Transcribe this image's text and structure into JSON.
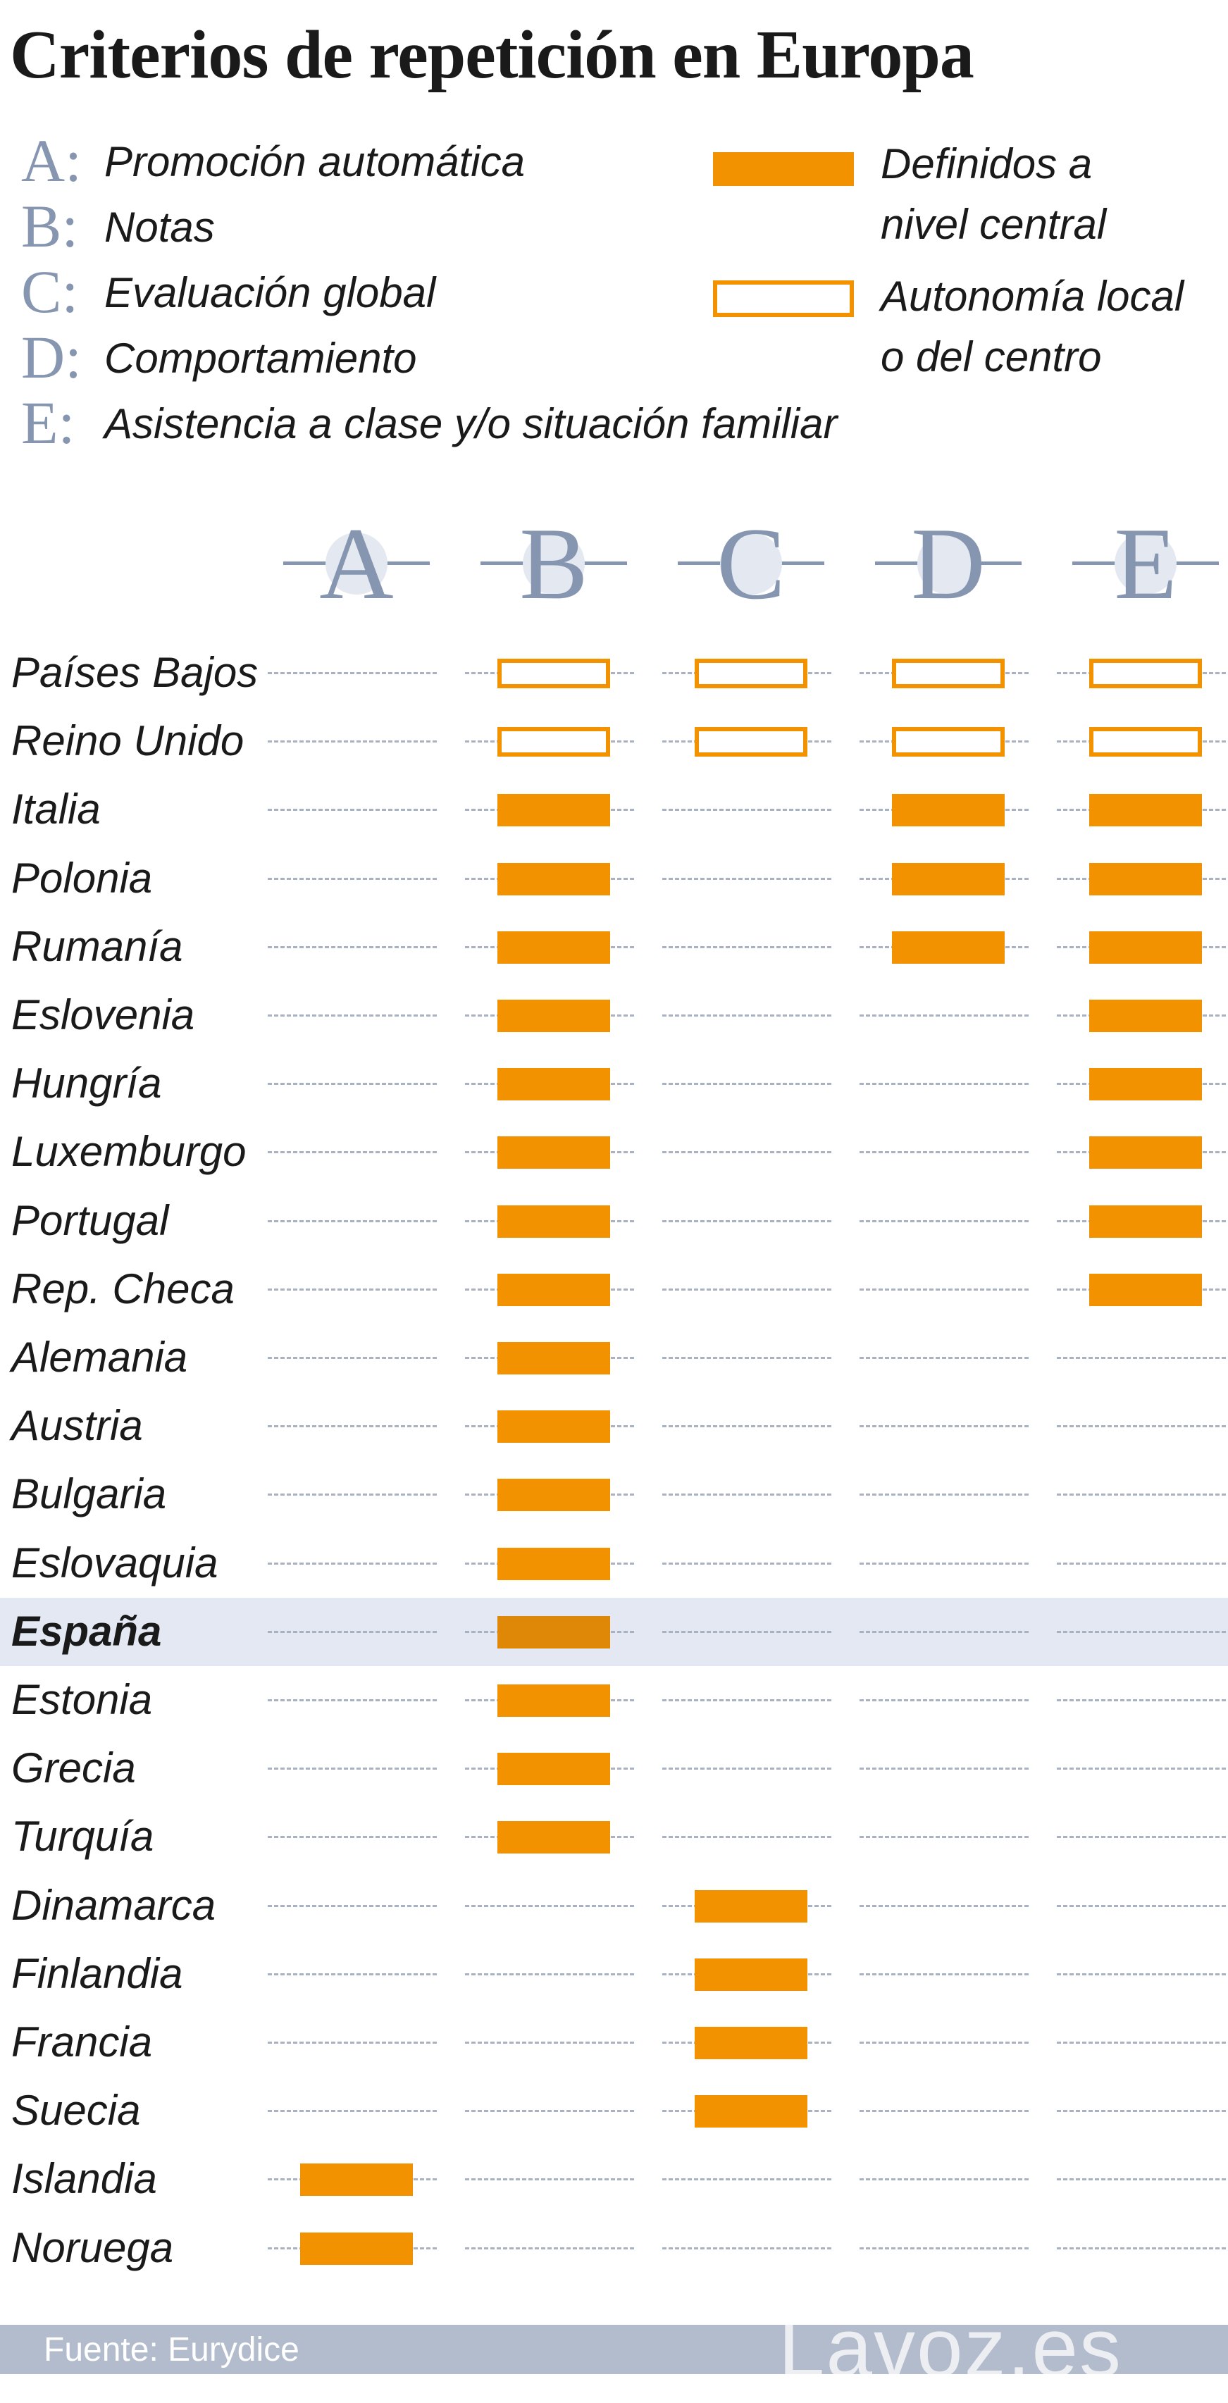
{
  "title": "Criterios de repetición en Europa",
  "definitions": [
    {
      "letter": "A:",
      "text": "Promoción automática"
    },
    {
      "letter": "B:",
      "text": "Notas"
    },
    {
      "letter": "C:",
      "text": "Evaluación global"
    },
    {
      "letter": "D:",
      "text": "Comportamiento"
    },
    {
      "letter": "E:",
      "text": "Asistencia a clase y/o situación familiar"
    }
  ],
  "legend": {
    "central": {
      "line1": "Definidos a",
      "line2": "nivel central"
    },
    "local": {
      "line1": "Autonomía local",
      "line2": "o del centro"
    }
  },
  "colors": {
    "bar": "#f39200",
    "highlight_row": "#e3e8f2",
    "letters": "#8796b0"
  },
  "chart_data": {
    "type": "table",
    "columns": [
      "A",
      "B",
      "C",
      "D",
      "E"
    ],
    "rows": [
      {
        "country": "Países Bajos",
        "values": [
          null,
          "local",
          "local",
          "local",
          "local"
        ]
      },
      {
        "country": "Reino Unido",
        "values": [
          null,
          "local",
          "local",
          "local",
          "local"
        ]
      },
      {
        "country": "Italia",
        "values": [
          null,
          "central",
          null,
          "central",
          "central"
        ]
      },
      {
        "country": "Polonia",
        "values": [
          null,
          "central",
          null,
          "central",
          "central"
        ]
      },
      {
        "country": "Rumanía",
        "values": [
          null,
          "central",
          null,
          "central",
          "central"
        ]
      },
      {
        "country": "Eslovenia",
        "values": [
          null,
          "central",
          null,
          null,
          "central"
        ]
      },
      {
        "country": "Hungría",
        "values": [
          null,
          "central",
          null,
          null,
          "central"
        ]
      },
      {
        "country": "Luxemburgo",
        "values": [
          null,
          "central",
          null,
          null,
          "central"
        ]
      },
      {
        "country": "Portugal",
        "values": [
          null,
          "central",
          null,
          null,
          "central"
        ]
      },
      {
        "country": "Rep. Checa",
        "values": [
          null,
          "central",
          null,
          null,
          "central"
        ]
      },
      {
        "country": "Alemania",
        "values": [
          null,
          "central",
          null,
          null,
          null
        ]
      },
      {
        "country": "Austria",
        "values": [
          null,
          "central",
          null,
          null,
          null
        ]
      },
      {
        "country": "Bulgaria",
        "values": [
          null,
          "central",
          null,
          null,
          null
        ]
      },
      {
        "country": "Eslovaquia",
        "values": [
          null,
          "central",
          null,
          null,
          null
        ]
      },
      {
        "country": "España",
        "values": [
          null,
          "central",
          null,
          null,
          null
        ],
        "highlight": true
      },
      {
        "country": "Estonia",
        "values": [
          null,
          "central",
          null,
          null,
          null
        ]
      },
      {
        "country": "Grecia",
        "values": [
          null,
          "central",
          null,
          null,
          null
        ]
      },
      {
        "country": "Turquía",
        "values": [
          null,
          "central",
          null,
          null,
          null
        ]
      },
      {
        "country": "Dinamarca",
        "values": [
          null,
          null,
          "central",
          null,
          null
        ]
      },
      {
        "country": "Finlandia",
        "values": [
          null,
          null,
          "central",
          null,
          null
        ]
      },
      {
        "country": "Francia",
        "values": [
          null,
          null,
          "central",
          null,
          null
        ]
      },
      {
        "country": "Suecia",
        "values": [
          null,
          null,
          "central",
          null,
          null
        ]
      },
      {
        "country": "Islandia",
        "values": [
          "central",
          null,
          null,
          null,
          null
        ]
      },
      {
        "country": "Noruega",
        "values": [
          "central",
          null,
          null,
          null,
          null
        ]
      }
    ]
  },
  "footer": {
    "source": "Fuente: Eurydice",
    "brand": "Lavoz.es"
  }
}
